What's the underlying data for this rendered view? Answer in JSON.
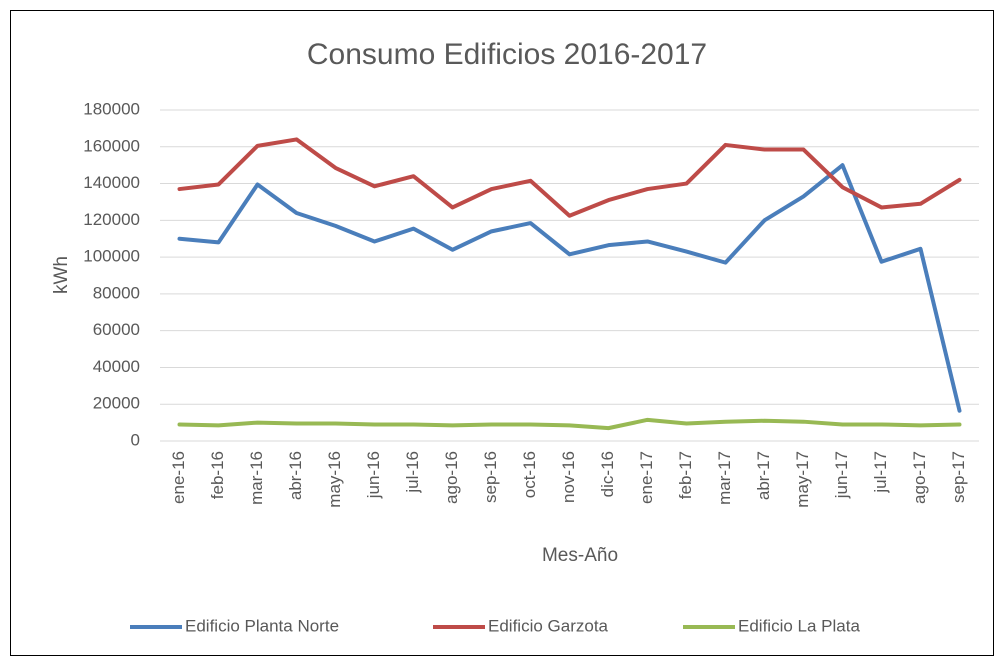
{
  "chart_data": {
    "type": "line",
    "title": "Consumo Edificios 2016-2017",
    "x_label": "Mes-Año",
    "y_label": "kWh",
    "categories": [
      "ene-16",
      "feb-16",
      "mar-16",
      "abr-16",
      "may-16",
      "jun-16",
      "jul-16",
      "ago-16",
      "sep-16",
      "oct-16",
      "nov-16",
      "dic-16",
      "ene-17",
      "feb-17",
      "mar-17",
      "abr-17",
      "may-17",
      "jun-17",
      "jul-17",
      "ago-17",
      "sep-17"
    ],
    "series": [
      {
        "name": "Edificio Planta Norte",
        "color": "#4a7ebb",
        "values": [
          110000,
          108000,
          139500,
          124000,
          117000,
          108500,
          115500,
          104000,
          114000,
          118500,
          101500,
          106500,
          108500,
          103000,
          97000,
          120000,
          133000,
          150000,
          97500,
          104500,
          16500
        ]
      },
      {
        "name": "Edificio Garzota",
        "color": "#be4b48",
        "values": [
          137000,
          139500,
          160500,
          164000,
          148500,
          138500,
          144000,
          127000,
          137000,
          141500,
          122500,
          131000,
          137000,
          140000,
          161000,
          158500,
          158500,
          138000,
          127000,
          129000,
          142000
        ]
      },
      {
        "name": "Edificio La Plata",
        "color": "#98b954",
        "values": [
          9000,
          8500,
          10000,
          9500,
          9500,
          9000,
          9000,
          8500,
          9000,
          9000,
          8500,
          7000,
          11500,
          9500,
          10500,
          11000,
          10500,
          9000,
          9000,
          8500,
          9000
        ]
      }
    ],
    "ylim": [
      0,
      180000
    ],
    "yticks": [
      0,
      20000,
      40000,
      60000,
      80000,
      100000,
      120000,
      140000,
      160000,
      180000
    ],
    "grid": true,
    "legend": "bottom"
  }
}
